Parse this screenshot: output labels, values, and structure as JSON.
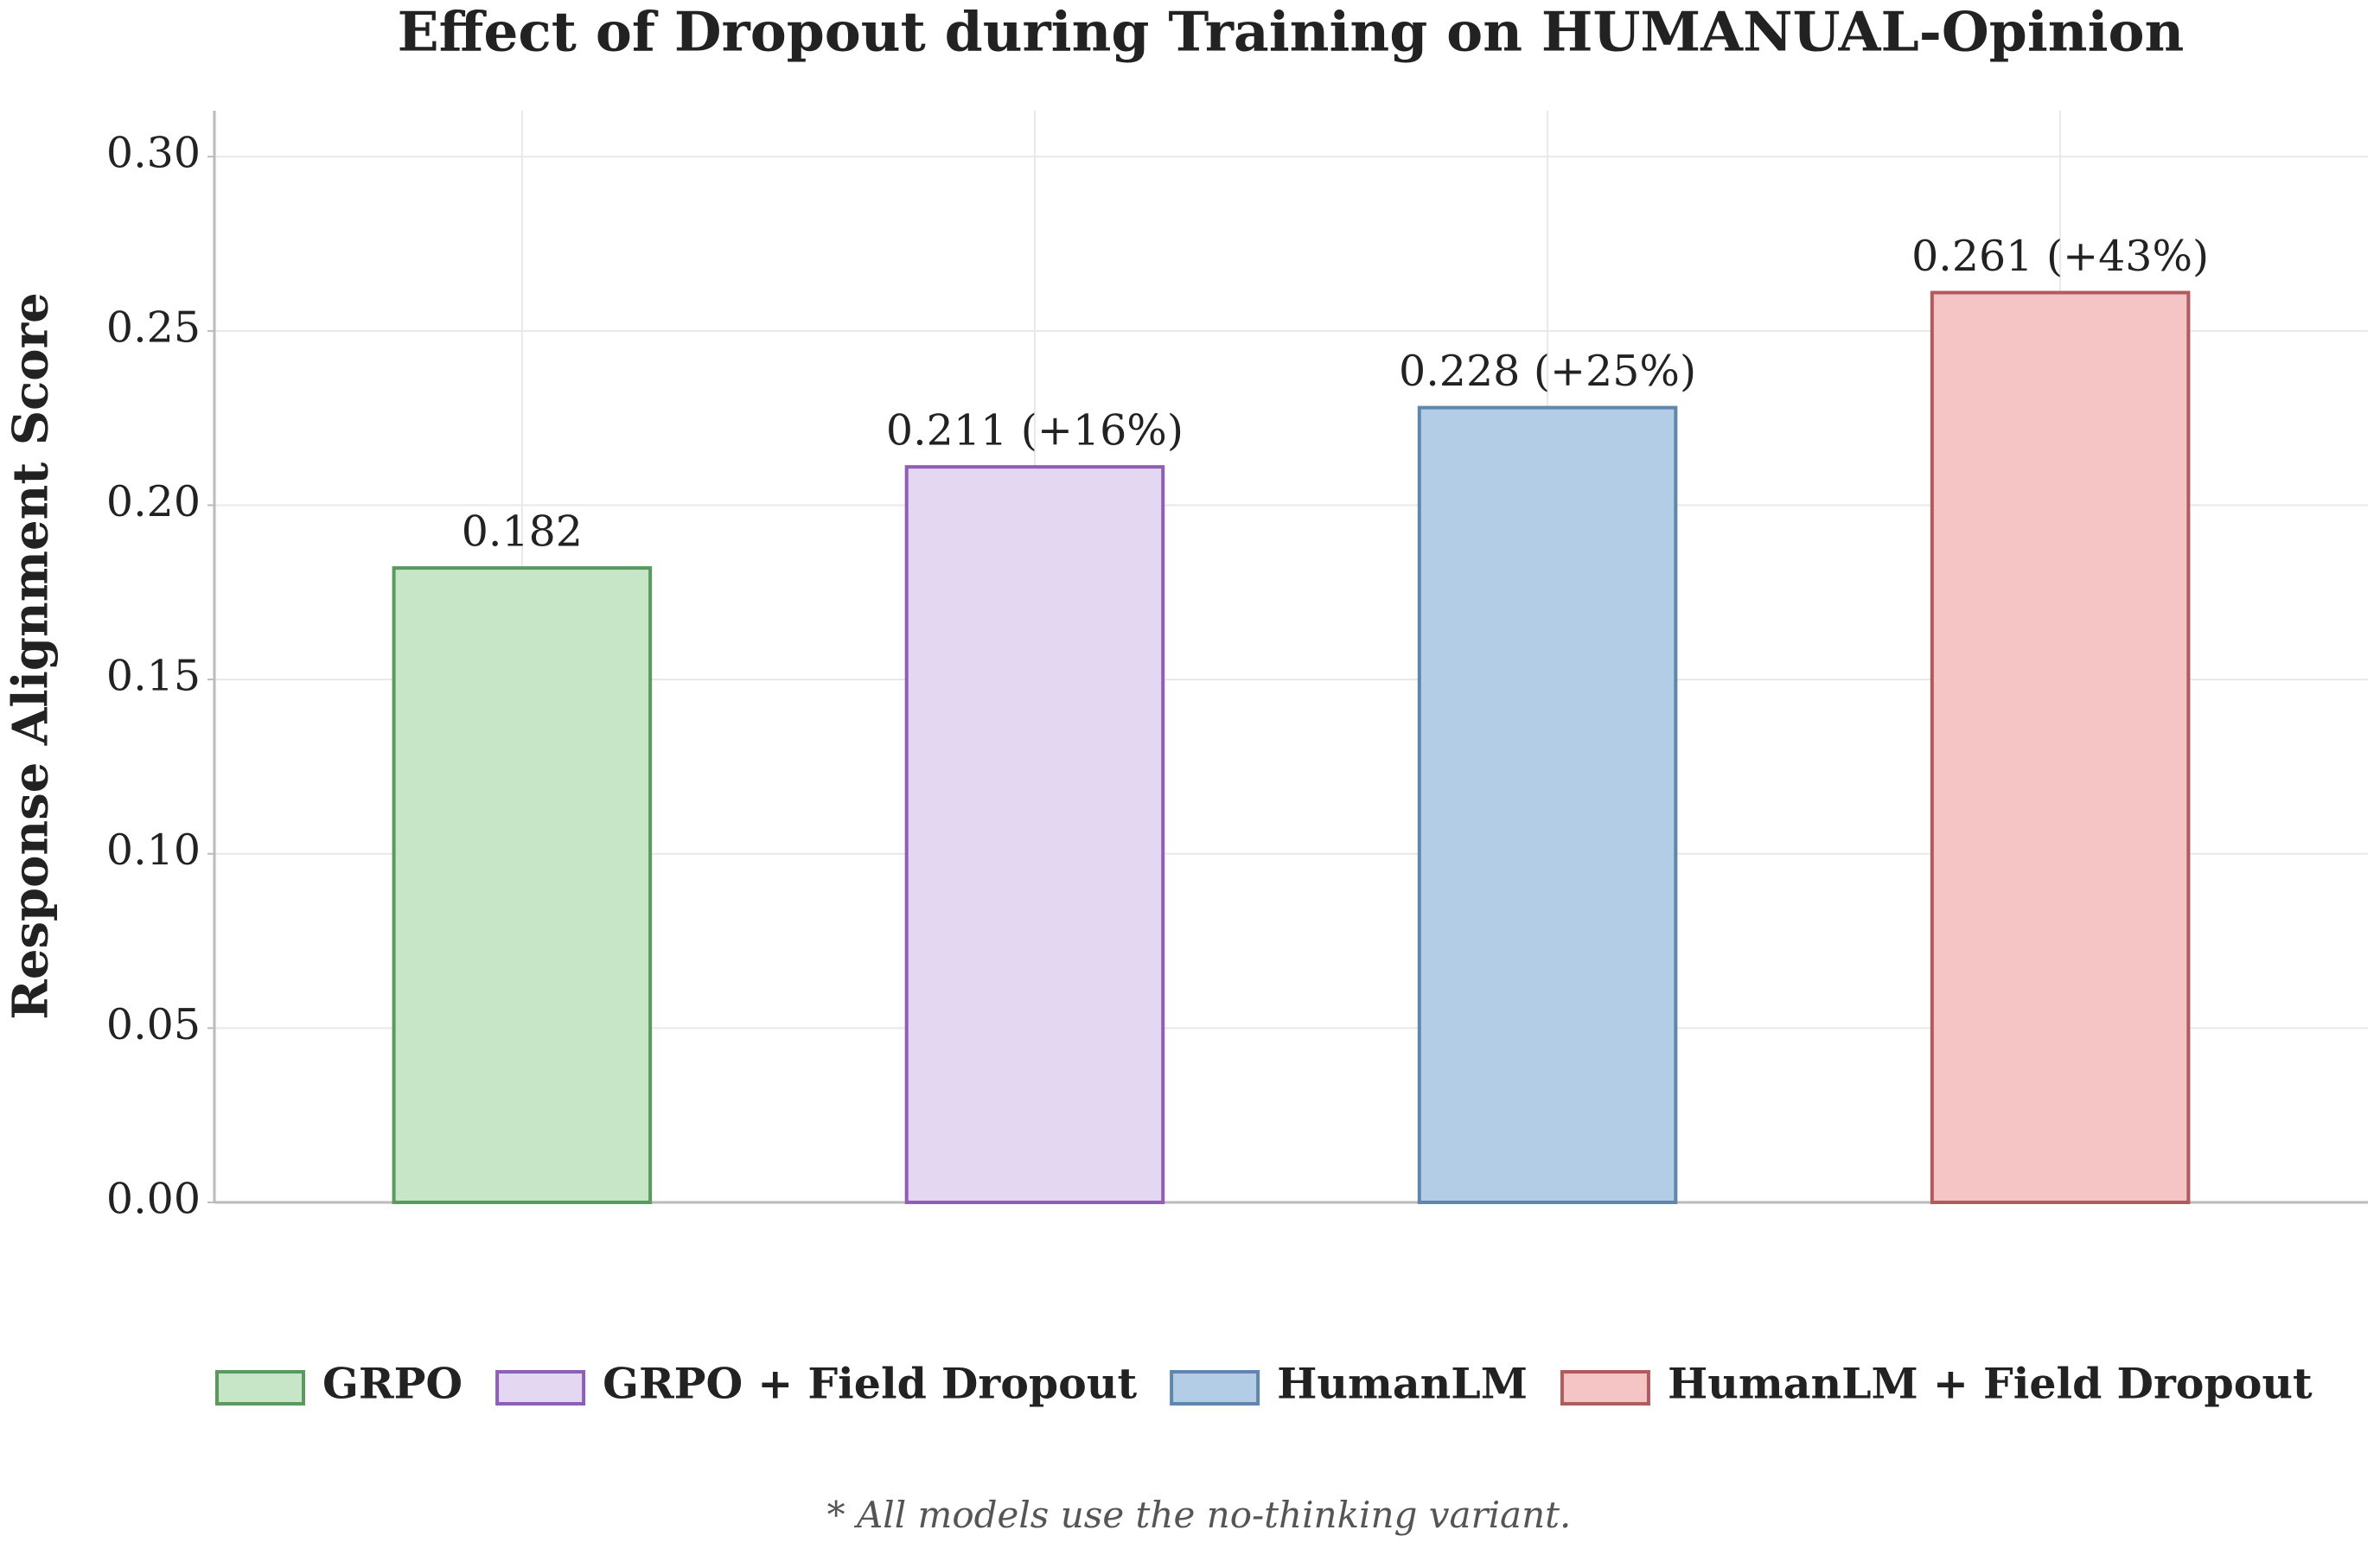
{
  "chart_data": {
    "type": "bar",
    "title": "Effect of Dropout during Training on HUMANUAL-Opinion",
    "y_label": "Response Alignment Score",
    "categories": [
      "GRPO",
      "GRPO + Field Dropout",
      "HumanLM",
      "HumanLM + Field Dropout"
    ],
    "values": [
      0.182,
      0.211,
      0.228,
      0.261
    ],
    "value_labels": [
      "0.182",
      "0.211 (+16%)",
      "0.228 (+25%)",
      "0.261 (+43%)"
    ],
    "colors": [
      "#c7e6c7",
      "#e4d7f2",
      "#b3cde6",
      "#f5c4c4"
    ],
    "edge_colors": [
      "#5a9a5e",
      "#8e5fb5",
      "#5f86ad",
      "#b05c5f"
    ],
    "ylim": [
      0,
      0.3132
    ],
    "yticks": [
      {
        "value": 0,
        "label": "0.00"
      },
      {
        "value": 0.05,
        "label": "0.05"
      },
      {
        "value": 0.1,
        "label": "0.10"
      },
      {
        "value": 0.15,
        "label": "0.15"
      },
      {
        "value": 0.2,
        "label": "0.20"
      },
      {
        "value": 0.25,
        "label": "0.25"
      },
      {
        "value": 0.3,
        "label": "0.30"
      }
    ],
    "grid": true,
    "legend": "bottom",
    "footnote": "* All models use the no-thinking variant."
  }
}
